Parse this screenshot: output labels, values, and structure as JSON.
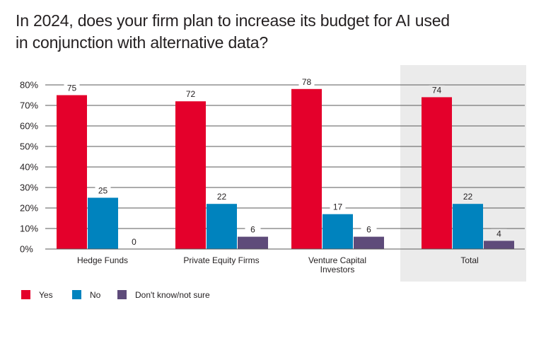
{
  "chart_data": {
    "type": "bar",
    "title": "In 2024, does your firm plan to increase its budget for AI used in conjunction with alternative data?",
    "title_lines": [
      "In 2024, does your firm plan to increase its budget for AI used",
      "in conjunction with alternative data?"
    ],
    "categories": [
      "Hedge Funds",
      "Private Equity Firms",
      "Venture Capital Investors",
      "Total"
    ],
    "category_lines": [
      [
        "Hedge Funds"
      ],
      [
        "Private Equity Firms"
      ],
      [
        "Venture Capital",
        "Investors"
      ],
      [
        "Total"
      ]
    ],
    "highlighted_category": "Total",
    "series": [
      {
        "name": "Yes",
        "color": "#e4002b",
        "values": [
          75,
          72,
          78,
          74
        ]
      },
      {
        "name": "No",
        "color": "#0083be",
        "values": [
          25,
          22,
          17,
          22
        ]
      },
      {
        "name": "Don't know/not sure",
        "color": "#5e4b7a",
        "values": [
          0,
          6,
          6,
          4
        ]
      }
    ],
    "value_labels": [
      [
        "75",
        "25",
        "0"
      ],
      [
        "72",
        "22",
        "6"
      ],
      [
        "78",
        "17",
        "6"
      ],
      [
        "74",
        "22",
        "4"
      ]
    ],
    "y_ticks": [
      "0%",
      "10%",
      "20%",
      "30%",
      "40%",
      "50%",
      "60%",
      "70%",
      "80%"
    ],
    "ylim": [
      0,
      80
    ],
    "grid": true,
    "legend_position": "bottom-left"
  }
}
